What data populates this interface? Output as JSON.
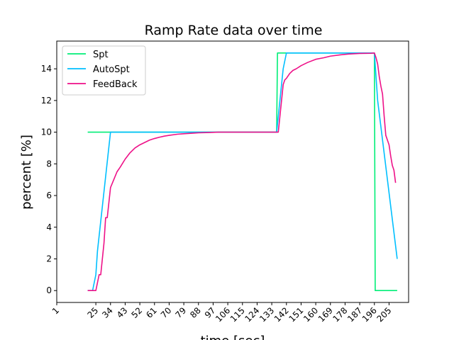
{
  "chart_data": {
    "type": "line",
    "title": "Ramp Rate data over time",
    "xlabel": "time [sec]",
    "ylabel": "percent [%]",
    "xlim": [
      1,
      217
    ],
    "ylim": [
      -0.75,
      15.75
    ],
    "x_ticks": [
      1,
      25,
      34,
      43,
      52,
      61,
      70,
      79,
      88,
      97,
      106,
      115,
      124,
      133,
      142,
      151,
      160,
      169,
      178,
      187,
      196,
      205
    ],
    "y_ticks": [
      0,
      2,
      4,
      6,
      8,
      10,
      12,
      14
    ],
    "grid": false,
    "legend_position": "top-left",
    "series": [
      {
        "name": "Spt",
        "color": "#00ee77",
        "points": [
          [
            20,
            10
          ],
          [
            136,
            10
          ],
          [
            136.5,
            15
          ],
          [
            196,
            15
          ],
          [
            196.5,
            0
          ],
          [
            210,
            0
          ]
        ]
      },
      {
        "name": "AutoSpt",
        "color": "#00bfff",
        "points": [
          [
            20,
            0
          ],
          [
            23,
            0
          ],
          [
            25,
            1
          ],
          [
            26,
            2.5
          ],
          [
            34,
            10
          ],
          [
            136,
            10
          ],
          [
            140,
            14
          ],
          [
            142,
            15
          ],
          [
            196,
            15
          ],
          [
            198,
            12
          ],
          [
            210,
            2
          ]
        ]
      },
      {
        "name": "FeedBack",
        "color": "#ee1188",
        "points": [
          [
            20,
            0
          ],
          [
            25,
            0
          ],
          [
            27,
            1
          ],
          [
            28,
            1
          ],
          [
            30,
            3
          ],
          [
            31,
            4.6
          ],
          [
            32,
            4.6
          ],
          [
            34,
            6.5
          ],
          [
            36,
            7
          ],
          [
            38,
            7.5
          ],
          [
            40,
            7.8
          ],
          [
            43,
            8.3
          ],
          [
            46,
            8.7
          ],
          [
            49,
            9.0
          ],
          [
            52,
            9.2
          ],
          [
            55,
            9.35
          ],
          [
            58,
            9.5
          ],
          [
            61,
            9.6
          ],
          [
            64,
            9.68
          ],
          [
            67,
            9.75
          ],
          [
            70,
            9.8
          ],
          [
            75,
            9.87
          ],
          [
            79,
            9.9
          ],
          [
            85,
            9.94
          ],
          [
            88,
            9.96
          ],
          [
            95,
            9.98
          ],
          [
            100,
            10
          ],
          [
            120,
            10
          ],
          [
            133,
            10
          ],
          [
            136,
            10
          ],
          [
            137,
            10
          ],
          [
            138,
            11
          ],
          [
            139,
            12
          ],
          [
            140,
            13
          ],
          [
            141,
            13.3
          ],
          [
            142,
            13.4
          ],
          [
            144,
            13.7
          ],
          [
            146,
            13.9
          ],
          [
            148,
            14
          ],
          [
            151,
            14.2
          ],
          [
            155,
            14.4
          ],
          [
            160,
            14.6
          ],
          [
            165,
            14.7
          ],
          [
            169,
            14.8
          ],
          [
            175,
            14.88
          ],
          [
            180,
            14.93
          ],
          [
            187,
            14.97
          ],
          [
            194,
            14.98
          ],
          [
            196,
            15
          ],
          [
            197,
            14.7
          ],
          [
            198,
            14.3
          ],
          [
            199,
            13.5
          ],
          [
            200,
            12.9
          ],
          [
            201,
            12.4
          ],
          [
            202,
            11.0
          ],
          [
            203,
            9.8
          ],
          [
            204,
            9.5
          ],
          [
            205,
            9.2
          ],
          [
            206,
            8.5
          ],
          [
            207,
            7.9
          ],
          [
            208,
            7.6
          ],
          [
            209,
            6.8
          ]
        ]
      }
    ]
  }
}
